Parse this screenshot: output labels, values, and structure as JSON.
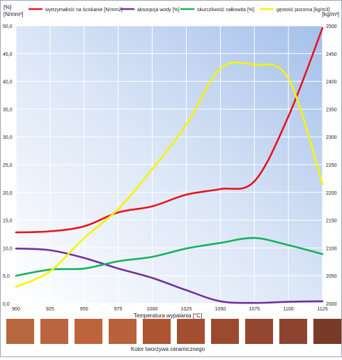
{
  "chart_data": {
    "type": "line",
    "y_left_label": [
      "[%]",
      "[N/mm²]"
    ],
    "y_right_label": "[kg/m³]",
    "xlabel": "Temperatura wypalania [°C]",
    "x": [
      900,
      925,
      950,
      975,
      1000,
      1025,
      1050,
      1075,
      1100,
      1125
    ],
    "x_ticks": [
      "900",
      "925",
      "950",
      "975",
      "1000",
      "1025",
      "1050",
      "1075",
      "1100",
      "1125"
    ],
    "y_left_ticks": [
      "0,0",
      "5,0",
      "10,0",
      "15,0",
      "20,0",
      "25,0",
      "30,0",
      "35,0",
      "40,0",
      "45,0",
      "50,0"
    ],
    "y_right_ticks": [
      "2000",
      "2050",
      "2100",
      "2150",
      "2200",
      "2250",
      "2300",
      "2350",
      "2400",
      "2450",
      "2500"
    ],
    "ylim_left": [
      0,
      50
    ],
    "ylim_right": [
      2000,
      2500
    ],
    "grid": true,
    "legend_position": "top",
    "series": [
      {
        "name": "wytrzymałość na ściskanie [N/mm2]",
        "axis": "left",
        "color": "#e8141c",
        "values": [
          12.8,
          13.0,
          13.9,
          16.4,
          17.5,
          19.6,
          20.6,
          22.0,
          33.7,
          49.6
        ]
      },
      {
        "name": "absorpcja wody [%]",
        "axis": "left",
        "color": "#7030a0",
        "values": [
          9.9,
          9.6,
          8.2,
          6.3,
          4.6,
          2.4,
          0.4,
          0.1,
          0.3,
          0.4
        ]
      },
      {
        "name": "skurczliwość całkowita [%]",
        "axis": "left",
        "color": "#17b25a",
        "values": [
          5.0,
          6.1,
          6.3,
          7.6,
          8.4,
          9.9,
          10.9,
          11.8,
          10.5,
          8.9
        ]
      },
      {
        "name": "gęstość pozorna [kg/m3]",
        "axis": "right",
        "color": "#f5f500",
        "values": [
          2030,
          2058,
          2118,
          2170,
          2242,
          2322,
          2423,
          2430,
          2405,
          2215
        ]
      }
    ]
  },
  "swatch_caption": "Kolor tworzywa ceramicznego",
  "swatch_colors": [
    "#b7683f",
    "#b96540",
    "#be643d",
    "#b9613b",
    "#ad5530",
    "#a44f32",
    "#9c4a2e",
    "#94462e",
    "#8c4430",
    "#7a3a28"
  ]
}
